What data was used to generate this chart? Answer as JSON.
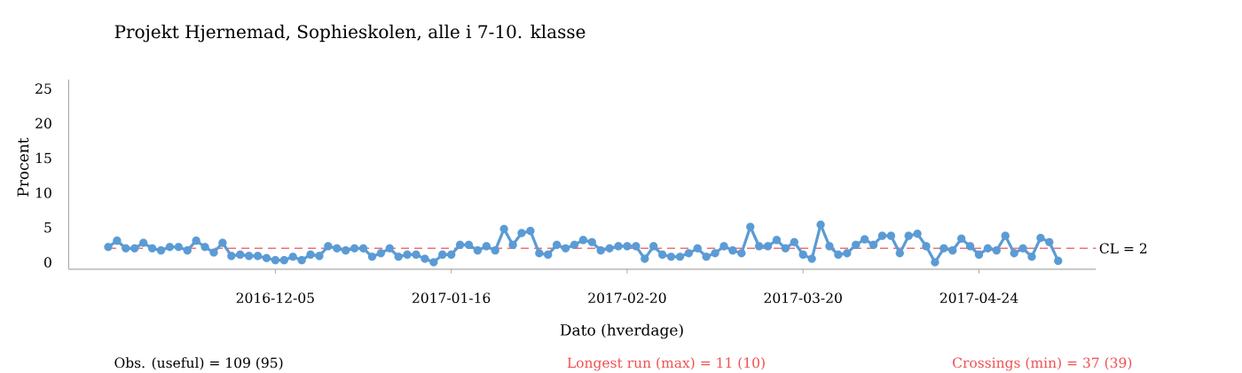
{
  "chart_data": {
    "type": "line",
    "title": "Projekt Hjernemad, Sophieskolen, alle i 7-10. klasse",
    "xlabel": "Dato (hverdage)",
    "ylabel": "Procent",
    "categories": [
      null,
      null,
      null,
      null,
      null,
      null,
      null,
      null,
      null,
      null,
      null,
      null,
      null,
      null,
      null,
      null,
      null,
      null,
      null,
      "2016-12-05",
      null,
      null,
      null,
      null,
      null,
      null,
      null,
      null,
      null,
      null,
      null,
      null,
      null,
      null,
      null,
      null,
      null,
      null,
      null,
      "2017-01-16",
      null,
      null,
      null,
      null,
      null,
      null,
      null,
      null,
      null,
      null,
      null,
      null,
      null,
      null,
      null,
      null,
      null,
      null,
      null,
      "2017-02-20",
      null,
      null,
      null,
      null,
      null,
      null,
      null,
      null,
      null,
      null,
      null,
      null,
      null,
      null,
      null,
      null,
      null,
      null,
      null,
      "2017-03-20",
      null,
      null,
      null,
      null,
      null,
      null,
      null,
      null,
      null,
      null,
      null,
      null,
      null,
      null,
      null,
      null,
      null,
      null,
      null,
      "2017-04-24",
      null,
      null,
      null,
      null,
      null,
      null,
      null,
      null,
      null
    ],
    "series": [
      {
        "color": "#5b9bd5",
        "values": [
          2.2,
          3.1,
          2.0,
          2.0,
          2.8,
          2.0,
          1.7,
          2.2,
          2.2,
          1.7,
          3.1,
          2.2,
          1.4,
          2.8,
          0.9,
          1.1,
          0.9,
          0.9,
          0.6,
          0.3,
          0.3,
          0.8,
          0.3,
          1.1,
          0.9,
          2.3,
          2.0,
          1.7,
          2.0,
          2.0,
          0.8,
          1.3,
          2.0,
          0.8,
          1.1,
          1.1,
          0.5,
          0.0,
          1.1,
          1.1,
          2.5,
          2.5,
          1.7,
          2.3,
          1.7,
          4.8,
          2.5,
          4.2,
          4.5,
          1.3,
          1.1,
          2.5,
          2.0,
          2.5,
          3.2,
          2.9,
          1.7,
          2.0,
          2.3,
          2.3,
          2.3,
          0.5,
          2.3,
          1.1,
          0.8,
          0.8,
          1.3,
          2.0,
          0.8,
          1.3,
          2.3,
          1.7,
          1.3,
          5.1,
          2.3,
          2.3,
          3.2,
          2.0,
          2.9,
          1.1,
          0.5,
          5.4,
          2.3,
          1.1,
          1.3,
          2.5,
          3.3,
          2.5,
          3.8,
          3.8,
          1.3,
          3.8,
          4.1,
          2.3,
          0.0,
          2.0,
          1.7,
          3.4,
          2.3,
          1.1,
          2.0,
          1.7,
          3.8,
          1.3,
          2.0,
          0.8,
          3.5,
          2.9,
          0.2
        ]
      }
    ],
    "ylim": [
      -1,
      26.3
    ],
    "yticks": [
      0,
      5,
      10,
      15,
      20,
      25
    ],
    "marker": "circle",
    "line_style": "solid",
    "grid": false,
    "ref_lines": [
      {
        "axis": "y",
        "value": 2,
        "label": "CL = 2",
        "color": "#f07070",
        "line_style": "dashed"
      }
    ],
    "annotations": [
      "Obs. (useful) = 109 (95)",
      "Longest run (max) = 11 (10)",
      "Crossings (min) = 37 (39)"
    ]
  }
}
